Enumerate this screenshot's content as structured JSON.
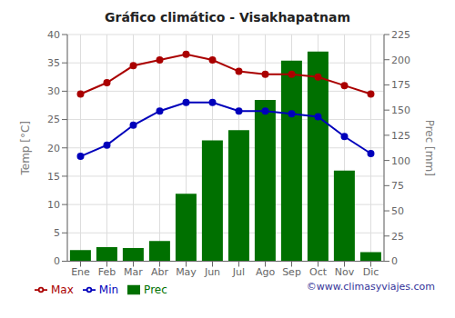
{
  "chart_data": {
    "type": "bar",
    "title": "Gráfico climático - Visakhapatnam",
    "categories": [
      "Ene",
      "Feb",
      "Mar",
      "Abr",
      "May",
      "Jun",
      "Jul",
      "Ago",
      "Sep",
      "Oct",
      "Nov",
      "Dic"
    ],
    "series": [
      {
        "name": "Prec",
        "type": "bar",
        "color": "#007000",
        "axis": "y2",
        "values": [
          11,
          14,
          13,
          20,
          67,
          120,
          130,
          160,
          199,
          208,
          90,
          9
        ]
      },
      {
        "name": "Min",
        "type": "line",
        "color": "#0000bb",
        "marker": "circle",
        "values": [
          18.5,
          20.5,
          24.0,
          26.5,
          28.0,
          28.0,
          26.5,
          26.5,
          26.0,
          25.5,
          22.0,
          19.0
        ]
      },
      {
        "name": "Max",
        "type": "line",
        "color": "#aa0000",
        "marker": "circle",
        "values": [
          29.5,
          31.5,
          34.5,
          35.5,
          36.5,
          35.5,
          33.5,
          33.0,
          33.0,
          32.5,
          31.0,
          29.5
        ]
      }
    ],
    "ylabel": "Temp [°C]",
    "y2label": "Prec [mm]",
    "ylim": [
      0,
      40
    ],
    "yticks": [
      0,
      5,
      10,
      15,
      20,
      25,
      30,
      35,
      40
    ],
    "y2lim": [
      0,
      225
    ],
    "y2ticks": [
      0,
      25,
      50,
      75,
      100,
      125,
      150,
      175,
      200,
      225
    ],
    "grid": true,
    "legend": "bottom",
    "annotations": [
      {
        "text": "©www.climasyviajes.com",
        "color": "#333399"
      }
    ]
  }
}
